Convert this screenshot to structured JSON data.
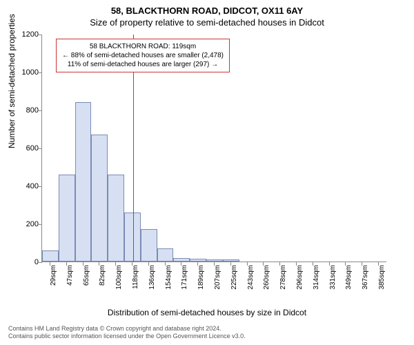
{
  "title": {
    "main": "58, BLACKTHORN ROAD, DIDCOT, OX11 6AY",
    "sub": "Size of property relative to semi-detached houses in Didcot"
  },
  "axes": {
    "ylabel": "Number of semi-detached properties",
    "xlabel": "Distribution of semi-detached houses by size in Didcot",
    "ylim": [
      0,
      1200
    ],
    "ytick_step": 200,
    "xticks": [
      "29sqm",
      "47sqm",
      "65sqm",
      "82sqm",
      "100sqm",
      "118sqm",
      "136sqm",
      "154sqm",
      "171sqm",
      "189sqm",
      "207sqm",
      "225sqm",
      "243sqm",
      "260sqm",
      "278sqm",
      "296sqm",
      "314sqm",
      "331sqm",
      "349sqm",
      "367sqm",
      "385sqm"
    ]
  },
  "histogram": {
    "type": "histogram",
    "bar_fill": "#d6e0f2",
    "bar_border": "#7a8bb5",
    "background": "#ffffff",
    "values": [
      60,
      460,
      840,
      670,
      460,
      260,
      170,
      70,
      20,
      15,
      10,
      10,
      0,
      0,
      0,
      0,
      0,
      0,
      0,
      0,
      0
    ]
  },
  "marker": {
    "position_sqm": 119,
    "color": "#cc3333",
    "annotation": {
      "line1": "58 BLACKTHORN ROAD: 119sqm",
      "line2": "← 88% of semi-detached houses are smaller (2,478)",
      "line3": "11% of semi-detached houses are larger (297) →",
      "border_color": "#cc3333"
    }
  },
  "footer": {
    "line1": "Contains HM Land Registry data © Crown copyright and database right 2024.",
    "line2": "Contains public sector information licensed under the Open Government Licence v3.0."
  }
}
